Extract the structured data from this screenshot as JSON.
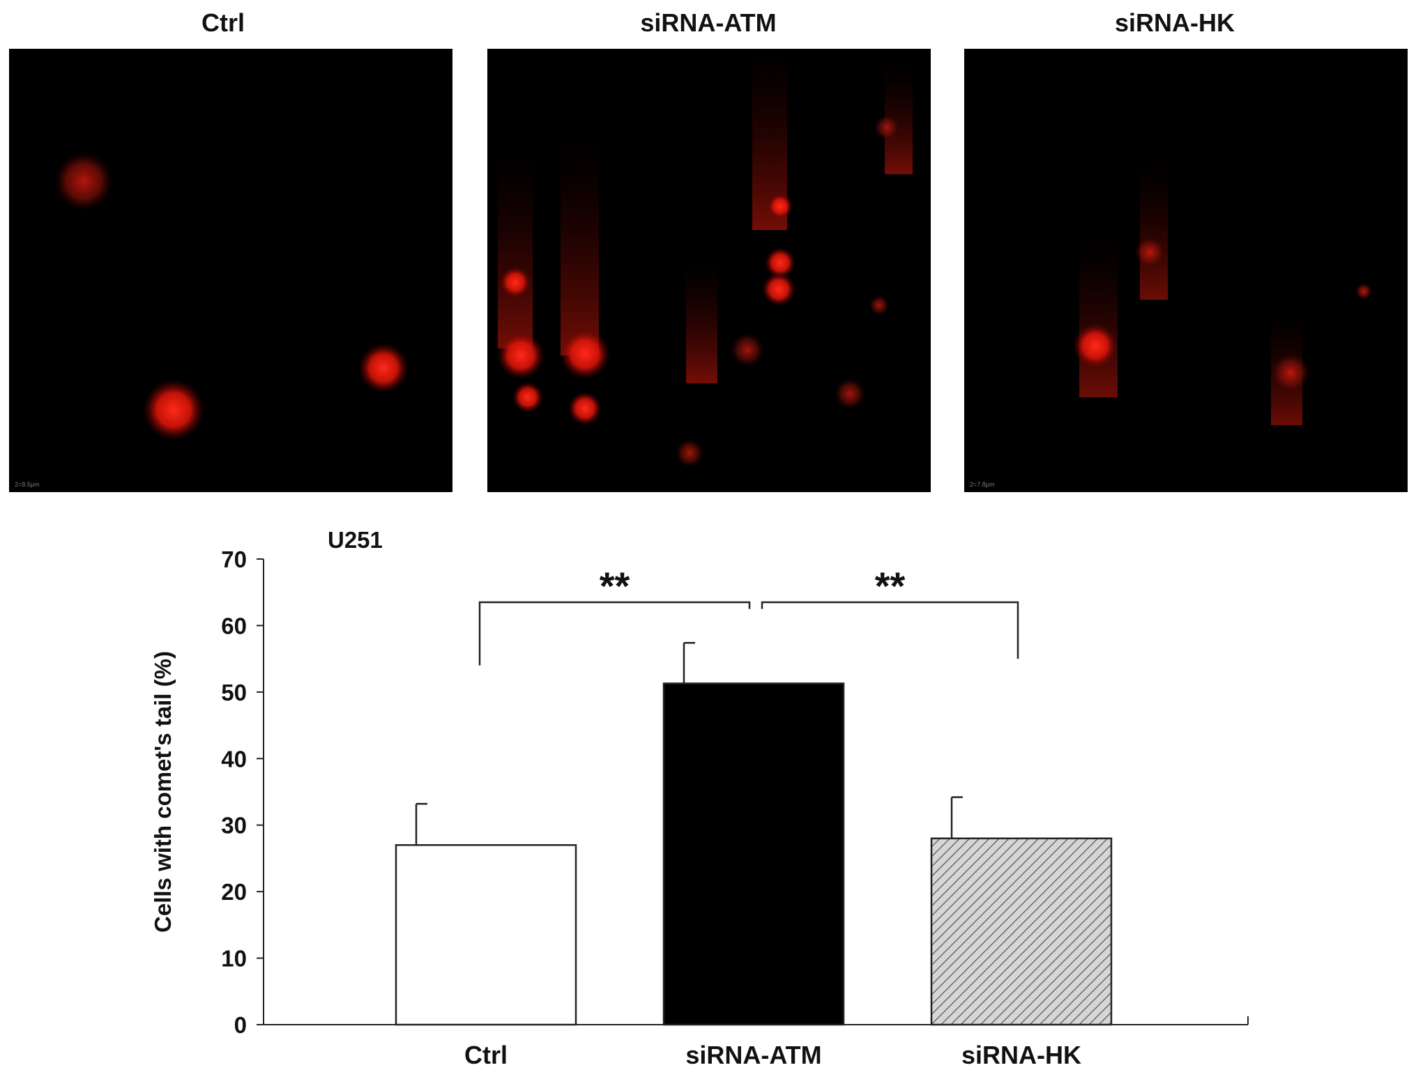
{
  "panels": [
    {
      "title": "Ctrl",
      "scale_text": "2=8.5μm"
    },
    {
      "title": "siRNA-ATM",
      "scale_text": ""
    },
    {
      "title": "siRNA-HK",
      "scale_text": "2=7.8μm"
    }
  ],
  "chart_data": {
    "type": "bar",
    "title": "U251",
    "ylabel": "Cells with comet's tail (%)",
    "xlabel": "",
    "categories": [
      "Ctrl",
      "siRNA-ATM",
      "siRNA-HK"
    ],
    "values": [
      27,
      51.3,
      28
    ],
    "errors": [
      6.2,
      6.1,
      6.2
    ],
    "ylim": [
      0,
      70
    ],
    "yticks": [
      0,
      10,
      20,
      30,
      40,
      50,
      60,
      70
    ],
    "bar_fills": [
      "#ffffff",
      "#000000",
      "hatch"
    ],
    "grid": false,
    "significance": [
      {
        "from": 0,
        "to": 1,
        "label": "**"
      },
      {
        "from": 1,
        "to": 2,
        "label": "**"
      }
    ]
  }
}
